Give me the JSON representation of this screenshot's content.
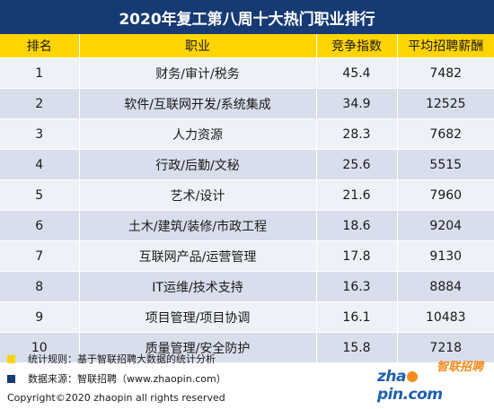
{
  "title": "2020年复工第八周十大热门职业排行",
  "table": {
    "headers": [
      "排名",
      "职业",
      "竞争指数",
      "平均招聘薪酬"
    ],
    "rows": [
      {
        "rank": "1",
        "job": "财务/审计/税务",
        "index": "45.4",
        "salary": "7482"
      },
      {
        "rank": "2",
        "job": "软件/互联网开发/系统集成",
        "index": "34.9",
        "salary": "12525"
      },
      {
        "rank": "3",
        "job": "人力资源",
        "index": "28.3",
        "salary": "7682"
      },
      {
        "rank": "4",
        "job": "行政/后勤/文秘",
        "index": "25.6",
        "salary": "5515"
      },
      {
        "rank": "5",
        "job": "艺术/设计",
        "index": "21.6",
        "salary": "7960"
      },
      {
        "rank": "6",
        "job": "土木/建筑/装修/市政工程",
        "index": "18.6",
        "salary": "9204"
      },
      {
        "rank": "7",
        "job": "互联网产品/运营管理",
        "index": "17.8",
        "salary": "9130"
      },
      {
        "rank": "8",
        "job": "IT运维/技术支持",
        "index": "16.3",
        "salary": "8884"
      },
      {
        "rank": "9",
        "job": "项目管理/项目协调",
        "index": "16.1",
        "salary": "10483"
      },
      {
        "rank": "10",
        "job": "质量管理/安全防护",
        "index": "15.8",
        "salary": "7218"
      }
    ]
  },
  "notes": {
    "rule": "统计规则：基于智联招聘大数据的统计分析",
    "source": "数据来源：智联招聘（www.zhaopin.com）",
    "rule_color": "#ffd400",
    "source_color": "#163a73"
  },
  "logo": {
    "cn": "智联招聘",
    "en_prefix": "zha",
    "en_suffix": "pin.com"
  },
  "copyright": "Copyright©2020 zhaopin all rights reserved",
  "colors": {
    "title_bg": "#163a73",
    "header_bg": "#ffd400",
    "row_light": "#eef1f7",
    "row_dark": "#d8deec"
  }
}
